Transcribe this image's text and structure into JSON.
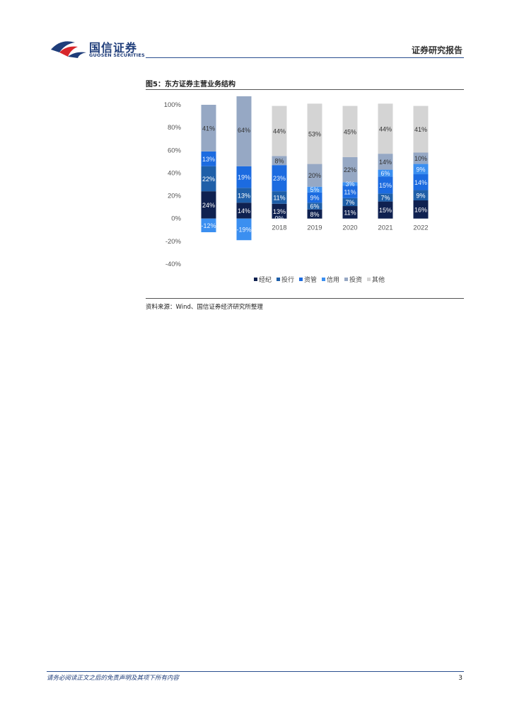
{
  "header": {
    "logo_cn": "国信证券",
    "logo_en": "GUOSEN SECURITIES",
    "report_type": "证券研究报告"
  },
  "figure": {
    "title": "图5：东方证券主营业务结构",
    "source": "资料来源：Wind、国信证券经济研究所整理"
  },
  "footer": {
    "disclaimer": "请务必阅读正文之后的免责声明及其项下所有内容",
    "page_number": "3"
  },
  "colors": {
    "brand_blue": "#1f3d7a",
    "brand_red": "#d7262b"
  },
  "chart_data": {
    "type": "bar",
    "stacked": true,
    "categories": [
      "",
      "",
      "2018",
      "2019",
      "2020",
      "2021",
      "2022"
    ],
    "ylim": [
      -40,
      100
    ],
    "yticks": [
      100,
      80,
      60,
      40,
      20,
      0,
      -20,
      -40
    ],
    "ytick_labels": [
      "100%",
      "80%",
      "60%",
      "40%",
      "20%",
      "0%",
      "-20%",
      "-40%"
    ],
    "legend_position": "bottom",
    "grid": false,
    "series": [
      {
        "name": "经纪",
        "color": "#0f2150",
        "values": [
          24,
          14,
          13,
          8,
          11,
          15,
          16
        ],
        "labels": [
          "24%",
          "14%",
          "13%",
          "8%",
          "11%",
          "15%",
          "16%"
        ]
      },
      {
        "name": "投行",
        "color": "#1f5fa8",
        "values": [
          22,
          13,
          11,
          6,
          7,
          7,
          9
        ],
        "labels": [
          "22%",
          "13%",
          "11%",
          "6%",
          "7%",
          "7%",
          "9%"
        ]
      },
      {
        "name": "资管",
        "color": "#1c6be0",
        "values": [
          13,
          19,
          23,
          9,
          11,
          15,
          14
        ],
        "labels": [
          "13%",
          "19%",
          "23%",
          "9%",
          "11%",
          "15%",
          "14%"
        ]
      },
      {
        "name": "信用",
        "color": "#3b8ff0",
        "values": [
          -12,
          -19,
          0,
          5,
          3,
          6,
          9
        ],
        "labels": [
          "-12%",
          "-19%",
          "0%",
          "5%",
          "3%",
          "6%",
          "9%"
        ]
      },
      {
        "name": "投资",
        "color": "#96a8c4",
        "values": [
          41,
          64,
          8,
          20,
          22,
          14,
          10
        ],
        "labels": [
          "41%",
          "64%",
          "8%",
          "20%",
          "22%",
          "14%",
          "10%"
        ]
      },
      {
        "name": "其他",
        "color": "#d4d4d4",
        "values": [
          0,
          0,
          44,
          53,
          45,
          44,
          41
        ],
        "labels": [
          "",
          "",
          "44%",
          "53%",
          "45%",
          "44%",
          "41%"
        ]
      }
    ]
  }
}
